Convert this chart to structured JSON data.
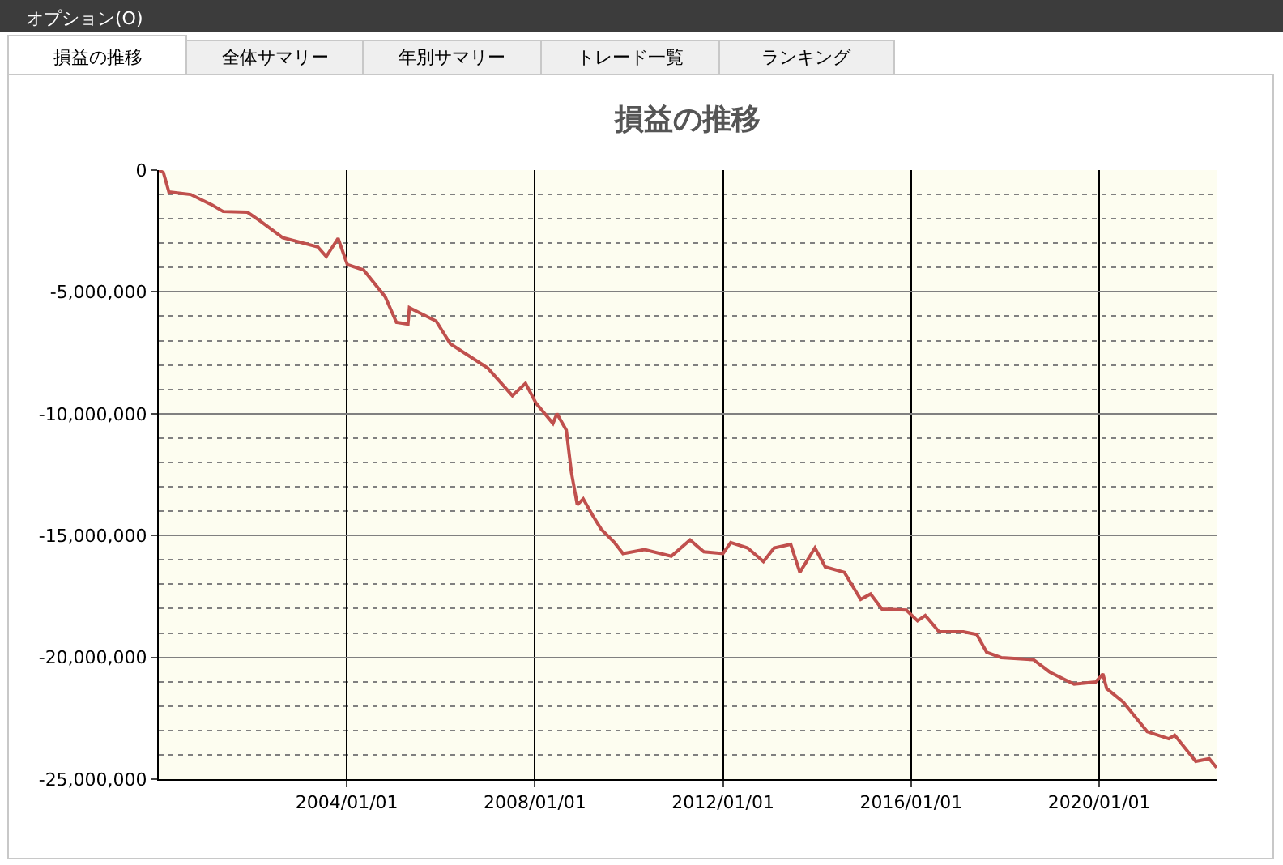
{
  "chart_data": {
    "type": "line",
    "title": "損益の推移",
    "annotations": [
      "オプション(O)",
      "損益の推移",
      "全体サマリー",
      "年別サマリー",
      "トレード一覧",
      "ランキング"
    ],
    "series": [
      {
        "color": "#c0504d",
        "x": [
          "2000-01-01",
          "2000-02-06",
          "2000-03-20",
          "2000-09-05",
          "2001-02-20",
          "2001-05-15",
          "2001-11-20",
          "2002-03-01",
          "2002-08-20",
          "2003-05-20",
          "2003-07-25",
          "2003-10-25",
          "2004-01-05",
          "2004-05-10",
          "2004-10-25",
          "2005-01-20",
          "2005-04-20",
          "2005-05-01",
          "2005-11-25",
          "2006-03-15",
          "2007-01-01",
          "2007-07-10",
          "2007-10-20",
          "2008-01-10",
          "2008-05-20",
          "2008-06-20",
          "2008-09-01",
          "2008-10-10",
          "2008-11-25",
          "2009-01-10",
          "2009-03-25",
          "2009-05-30",
          "2009-09-10",
          "2009-11-15",
          "2010-05-01",
          "2010-11-25",
          "2011-04-20",
          "2011-08-05",
          "2012-01-01",
          "2012-03-01",
          "2012-07-10",
          "2012-11-10",
          "2013-02-01",
          "2013-06-10",
          "2013-08-20",
          "2013-12-15",
          "2014-03-05",
          "2014-08-01",
          "2014-12-05",
          "2015-02-20",
          "2015-05-20",
          "2015-11-25",
          "2016-02-20",
          "2016-04-20",
          "2016-08-05",
          "2017-02-10",
          "2017-05-25",
          "2017-08-10",
          "2017-12-01",
          "2018-08-10",
          "2018-12-15",
          "2019-06-20",
          "2019-12-05",
          "2020-01-30",
          "2020-02-28",
          "2020-07-05",
          "2021-01-08",
          "2021-06-25",
          "2021-08-10",
          "2022-01-20",
          "2022-05-05",
          "2022-07-01"
        ],
        "values": [
          0,
          -100000,
          -900000,
          -1000000,
          -1440000,
          -1700000,
          -1730000,
          -2100000,
          -2770000,
          -3150000,
          -3550000,
          -2800000,
          -3880000,
          -4100000,
          -5200000,
          -6250000,
          -6320000,
          -5650000,
          -6200000,
          -7130000,
          -8130000,
          -9260000,
          -8750000,
          -9570000,
          -10400000,
          -10000000,
          -10680000,
          -12400000,
          -13740000,
          -13500000,
          -14180000,
          -14740000,
          -15290000,
          -15740000,
          -15580000,
          -15850000,
          -15180000,
          -15670000,
          -15740000,
          -15290000,
          -15510000,
          -16070000,
          -15510000,
          -15360000,
          -16510000,
          -15510000,
          -16290000,
          -16510000,
          -17620000,
          -17400000,
          -18020000,
          -18060000,
          -18500000,
          -18280000,
          -18950000,
          -18950000,
          -19060000,
          -19790000,
          -20010000,
          -20100000,
          -20610000,
          -21100000,
          -21010000,
          -20680000,
          -21280000,
          -21830000,
          -23050000,
          -23340000,
          -23200000,
          -24270000,
          -24160000,
          -24530000
        ]
      }
    ],
    "xlim": [
      "2000-01-01",
      "2022-07-01"
    ],
    "xticks": [
      {
        "value": "2004-01-01",
        "label": "2004/01/01"
      },
      {
        "value": "2008-01-01",
        "label": "2008/01/01"
      },
      {
        "value": "2012-01-01",
        "label": "2012/01/01"
      },
      {
        "value": "2016-01-01",
        "label": "2016/01/01"
      },
      {
        "value": "2020-01-01",
        "label": "2020/01/01"
      }
    ],
    "ylim": [
      -25000000,
      0
    ],
    "yticks": [
      {
        "value": -25000000,
        "label": "-25,000,000"
      },
      {
        "value": -20000000,
        "label": "-20,000,000"
      },
      {
        "value": -15000000,
        "label": "-15,000,000"
      },
      {
        "value": -10000000,
        "label": "-10,000,000"
      },
      {
        "value": -5000000,
        "label": "-5,000,000"
      },
      0
    ],
    "grid": true,
    "line_style": "solid",
    "marker": "none"
  }
}
